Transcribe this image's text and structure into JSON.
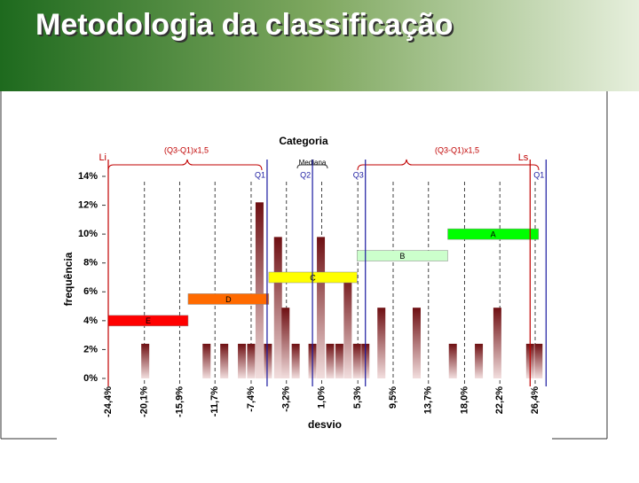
{
  "slide_title": "Metodologia da classificação",
  "chart_data": {
    "type": "bar",
    "title": "Categoria",
    "xlabel": "desvio",
    "ylabel": "frequência",
    "x": [
      -20.0,
      -12.7,
      -10.6,
      -8.5,
      -7.4,
      -6.4,
      -5.4,
      -4.2,
      -3.3,
      -2.1,
      -0.1,
      0.9,
      2.0,
      3.1,
      4.1,
      5.2,
      6.2,
      8.1,
      12.3,
      16.6,
      19.7,
      21.9,
      25.8,
      26.8
    ],
    "values": [
      2.4,
      2.4,
      2.4,
      2.4,
      2.4,
      12.2,
      2.4,
      9.8,
      4.9,
      2.4,
      2.4,
      9.8,
      2.4,
      2.4,
      7.3,
      2.4,
      2.4,
      4.9,
      4.9,
      2.4,
      2.4,
      4.9,
      2.4,
      2.4
    ],
    "color": "#6e0f12",
    "xlim": [
      -24.4,
      26.4
    ],
    "ylim": [
      0,
      14
    ],
    "xticks": [
      {
        "value": -24.4,
        "label": "-24,4%"
      },
      {
        "value": -20.1,
        "label": "-20,1%"
      },
      {
        "value": -15.9,
        "label": "-15,9%"
      },
      {
        "value": -11.7,
        "label": "-11,7%"
      },
      {
        "value": -7.4,
        "label": "-7,4%"
      },
      {
        "value": -3.2,
        "label": "-3,2%"
      },
      {
        "value": 1.0,
        "label": "1,0%"
      },
      {
        "value": 5.3,
        "label": "5,3%"
      },
      {
        "value": 9.5,
        "label": "9,5%"
      },
      {
        "value": 13.7,
        "label": "13,7%"
      },
      {
        "value": 18.0,
        "label": "18,0%"
      },
      {
        "value": 22.2,
        "label": "22,2%"
      },
      {
        "value": 26.4,
        "label": "26,4%"
      }
    ],
    "yticks": [
      {
        "value": 0,
        "label": "0%"
      },
      {
        "value": 2,
        "label": "2%"
      },
      {
        "value": 4,
        "label": "4%"
      },
      {
        "value": 6,
        "label": "6%"
      },
      {
        "value": 8,
        "label": "8%"
      },
      {
        "value": 10,
        "label": "10%"
      },
      {
        "value": 12,
        "label": "12%"
      },
      {
        "value": 14,
        "label": "14%"
      }
    ],
    "classes": [
      {
        "label": "E",
        "start": -24.4,
        "end": -14.9,
        "y": 4.0,
        "color": "#ff0000"
      },
      {
        "label": "D",
        "start": -14.9,
        "end": -5.3,
        "y": 5.5,
        "color": "#ff6a00"
      },
      {
        "label": "C",
        "start": -5.3,
        "end": 5.2,
        "y": 7.0,
        "color": "#ffff00"
      },
      {
        "label": "B",
        "start": 5.2,
        "end": 16.0,
        "y": 8.5,
        "color": "#ccffcc"
      },
      {
        "label": "A",
        "start": 16.0,
        "end": 26.8,
        "y": 10.0,
        "color": "#00ff00"
      }
    ],
    "reference_lines": [
      {
        "label": "Li",
        "x": -24.4,
        "color": "#c00000"
      },
      {
        "label": "Q1",
        "x": -5.5,
        "color": "#1a1aa0"
      },
      {
        "label": "Q2",
        "x": -0.1,
        "color": "#1a1aa0"
      },
      {
        "label": "Q3",
        "x": 6.2,
        "color": "#1a1aa0"
      },
      {
        "label": "Ls",
        "x": 25.8,
        "color": "#c00000"
      },
      {
        "label": "Q1",
        "x": 27.7,
        "color": "#1a1aa0"
      }
    ],
    "annotations": [
      "Mediana",
      "(Q3-Q1)x1,5",
      "(Q3-Q1)x1,5"
    ]
  }
}
